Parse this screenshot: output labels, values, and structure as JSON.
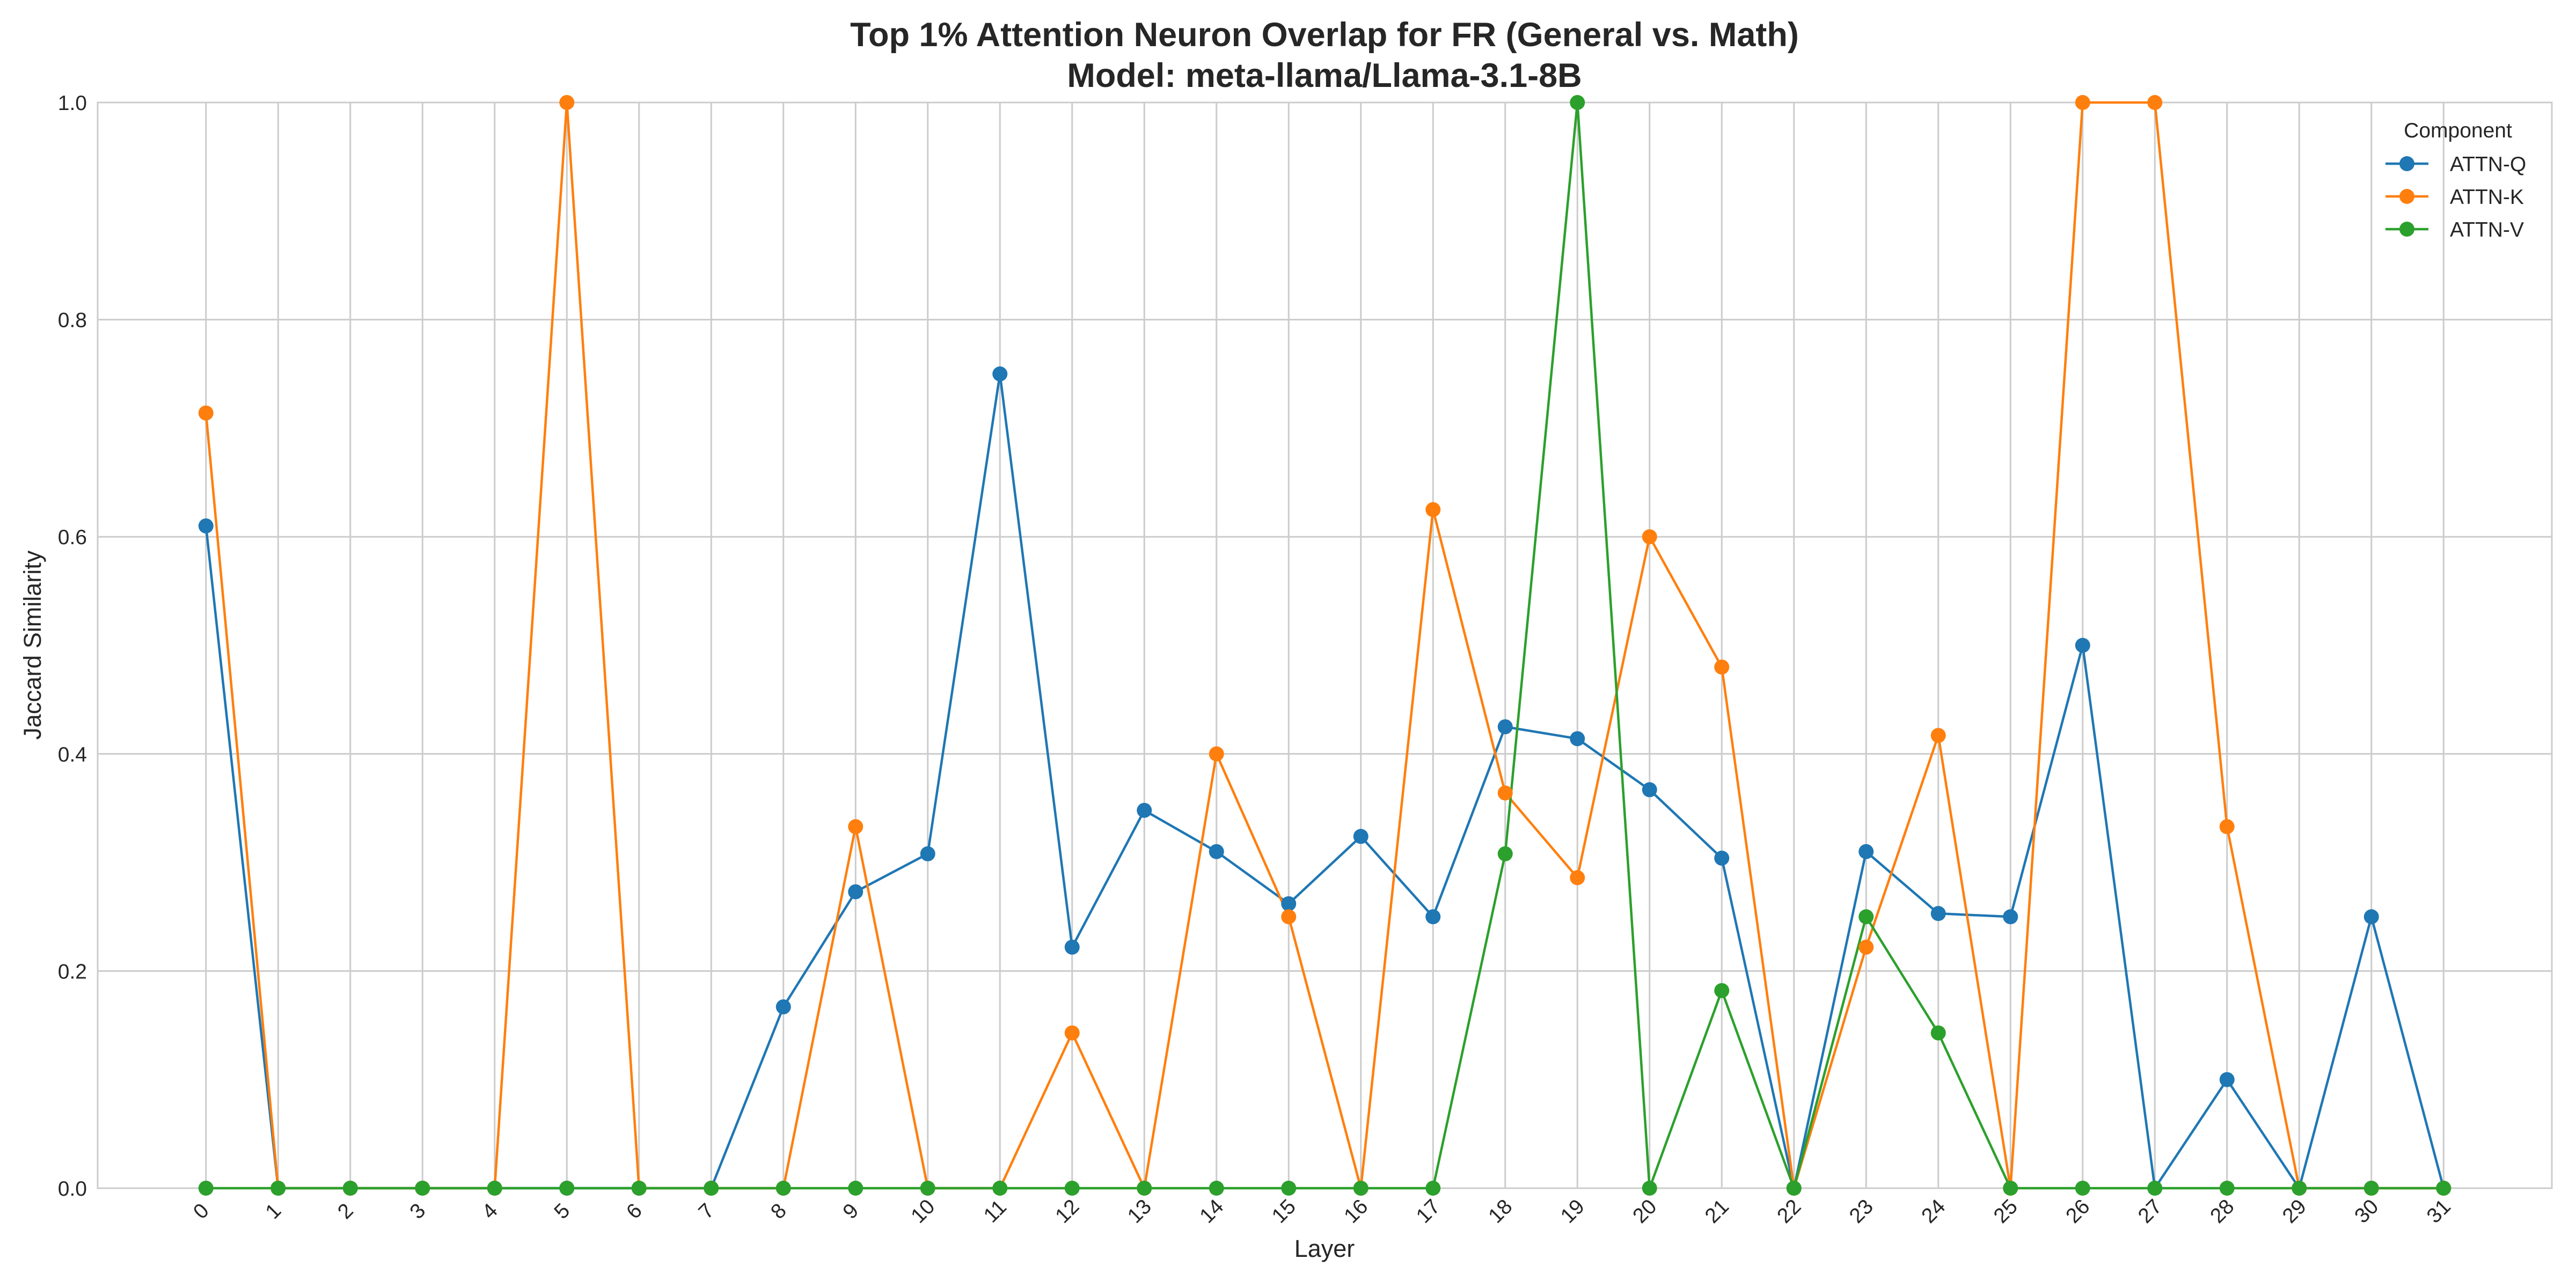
{
  "chart_data": {
    "type": "line",
    "title": "Top 1% Attention Neuron Overlap for FR (General vs. Math)",
    "subtitle": "Model: meta-llama/Llama-3.1-8B",
    "xlabel": "Layer",
    "ylabel": "Jaccard Similarity",
    "x": [
      0,
      1,
      2,
      3,
      4,
      5,
      6,
      7,
      8,
      9,
      10,
      11,
      12,
      13,
      14,
      15,
      16,
      17,
      18,
      19,
      20,
      21,
      22,
      23,
      24,
      25,
      26,
      27,
      28,
      29,
      30,
      31
    ],
    "xlim": [
      -1.5,
      32.5
    ],
    "ylim": [
      0.0,
      1.0
    ],
    "yticks": [
      "0.0",
      "0.2",
      "0.4",
      "0.6",
      "0.8",
      "1.0"
    ],
    "grid": true,
    "legend": {
      "title": "Component",
      "placement": "top-right"
    },
    "series": [
      {
        "name": "ATTN-Q",
        "color": "#1f77b4",
        "values": [
          0.61,
          0,
          0,
          0,
          0,
          0,
          0,
          0,
          0.167,
          0.273,
          0.308,
          0.75,
          0.222,
          0.348,
          0.31,
          0.262,
          0.324,
          0.25,
          0.425,
          0.414,
          0.367,
          0.304,
          0,
          0.31,
          0.253,
          0.25,
          0.5,
          0,
          0.1,
          0,
          0.25,
          0
        ]
      },
      {
        "name": "ATTN-K",
        "color": "#ff7f0e",
        "values": [
          0.714,
          0,
          0,
          0,
          0,
          1.0,
          0,
          0,
          0,
          0.333,
          0,
          0,
          0.143,
          0,
          0.4,
          0.25,
          0,
          0.625,
          0.364,
          0.286,
          0.6,
          0.48,
          0,
          0.222,
          0.417,
          0,
          1.0,
          1.0,
          0.333,
          0,
          0,
          0
        ]
      },
      {
        "name": "ATTN-V",
        "color": "#2ca02c",
        "values": [
          0,
          0,
          0,
          0,
          0,
          0,
          0,
          0,
          0,
          0,
          0,
          0,
          0,
          0,
          0,
          0,
          0,
          0,
          0.308,
          1.0,
          0,
          0.182,
          0,
          0.25,
          0.143,
          0,
          0,
          0,
          0,
          0,
          0,
          0
        ]
      }
    ]
  }
}
